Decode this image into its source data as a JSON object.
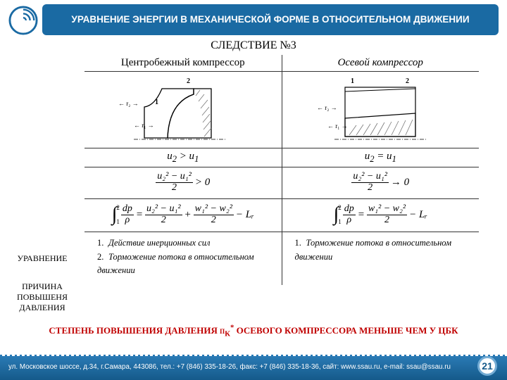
{
  "header": "УРАВНЕНИЕ ЭНЕРГИИ В МЕХАНИЧЕСКОЙ ФОРМЕ В ОТНОСИТЕЛЬНОМ ДВИЖЕНИИ",
  "subtitle": "СЛЕДСТВИЕ №3",
  "col1_title": "Центробежный компрессор",
  "col2_title": "Осевой компрессор",
  "ineq1_html": "u<sub>2</sub> > u<sub>1</sub>",
  "ineq2_html": "u<sub>2</sub> = u<sub>1</sub>",
  "frac1_n": "u₂² − u₁²",
  "frac1_d": "2",
  "frac1_tail": "> 0",
  "frac2_n": "u₂² − u₁²",
  "frac2_d": "2",
  "frac2_tail": "→ 0",
  "eq_lhs_n": "dp",
  "eq_lhs_d": "ρ",
  "eq1_t1_n": "u₂² − u₁²",
  "eq1_t1_d": "2",
  "eq1_t2_n": "w₁² − w₂²",
  "eq1_t2_d": "2",
  "eq1_tail": "− Lᵣ",
  "eq2_t1_n": "w₁² − w₂²",
  "eq2_t1_d": "2",
  "eq2_tail": "− Lᵣ",
  "label_eq": "УРАВНЕНИЕ",
  "label_cause": "ПРИЧИНА ПОВЫШЕНЯ ДАВЛЕНИЯ",
  "cause1_items": [
    "Действие инерционных сил",
    "Торможение потока в относительном движении"
  ],
  "cause2_items": [
    "Торможение потока в относительном движении"
  ],
  "conclusion_html": "СТЕПЕНЬ ПОВЫШЕНИЯ ДАВЛЕНИЯ π<sub>К</sub><sup>*</sup> ОСЕВОГО КОМПРЕССОРА МЕНЬШЕ ЧЕМ У ЦБК",
  "footer": "ул. Московское шоссе, д.34, г.Самара, 443086, тел.: +7 (846) 335-18-26, факс: +7 (846) 335-18-36, сайт: www.ssau.ru, e-mail: ssau@ssau.ru",
  "page": "21",
  "colors": {
    "header": "#1a6aa3",
    "conclusion": "#c00000",
    "footer_grad_top": "#2a7ab5",
    "footer_grad_bot": "#155a8a"
  }
}
